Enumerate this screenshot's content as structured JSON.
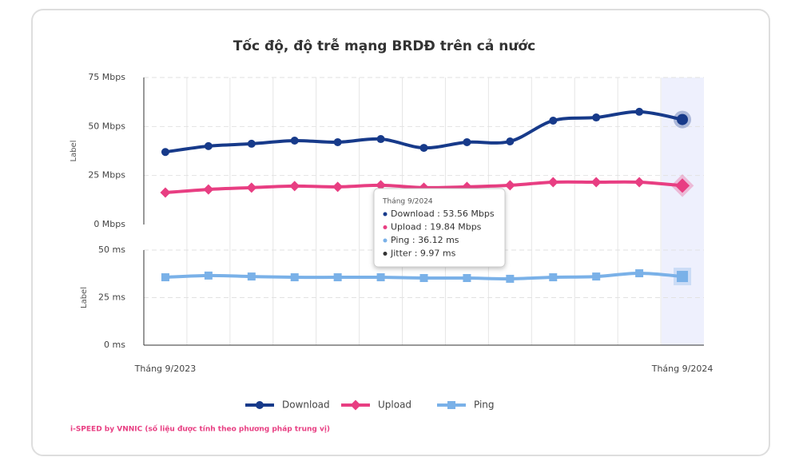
{
  "chart_data": [
    {
      "type": "line",
      "title": "Tốc độ, độ trễ mạng BRDĐ trên cả nước",
      "ylabel": "Label",
      "ylim": [
        0,
        75
      ],
      "yticks": [
        {
          "value": 0,
          "label": "0 Mbps"
        },
        {
          "value": 25,
          "label": "25 Mbps"
        },
        {
          "value": 50,
          "label": "50 Mbps"
        },
        {
          "value": 75,
          "label": "75 Mbps"
        }
      ],
      "grid": true,
      "series": [
        {
          "name": "Download",
          "color": "#173a8a",
          "marker": "circle",
          "values": [
            37,
            40,
            41.2,
            42.8,
            42,
            43.6,
            39.1,
            42,
            42.4,
            53,
            54.6,
            57.5,
            53.56
          ]
        },
        {
          "name": "Upload",
          "color": "#e83e82",
          "marker": "diamond",
          "values": [
            16.3,
            17.9,
            18.8,
            19.6,
            19.2,
            20,
            18.8,
            19.2,
            20,
            21.6,
            21.6,
            21.6,
            19.84
          ]
        }
      ]
    },
    {
      "type": "line",
      "ylabel": "Label",
      "categories": [
        "Tháng 9/2023",
        null,
        null,
        null,
        null,
        null,
        null,
        null,
        null,
        null,
        null,
        null,
        "Tháng 9/2024"
      ],
      "ylim": [
        0,
        50
      ],
      "yticks": [
        {
          "value": 0,
          "label": "0 ms"
        },
        {
          "value": 25,
          "label": "25 ms"
        },
        {
          "value": 50,
          "label": "50 ms"
        }
      ],
      "grid": true,
      "series": [
        {
          "name": "Ping",
          "color": "#7ab1e8",
          "marker": "square",
          "values": [
            35.7,
            36.6,
            36.1,
            35.7,
            35.7,
            35.7,
            35.3,
            35.3,
            34.9,
            35.7,
            36.1,
            37.8,
            36.12
          ]
        }
      ]
    }
  ],
  "tooltip": {
    "title": "Tháng 9/2024",
    "items": [
      {
        "text": "Download : 53.56 Mbps",
        "color": "#173a8a"
      },
      {
        "text": "Upload : 19.84 Mbps",
        "color": "#e83e82"
      },
      {
        "text": "Ping : 36.12 ms",
        "color": "#7ab1e8"
      },
      {
        "text": "Jitter : 9.97 ms",
        "color": "#333333"
      }
    ]
  },
  "footer": "i-SPEED by VNNIC (số liệu được tính theo phương pháp trung vị)"
}
